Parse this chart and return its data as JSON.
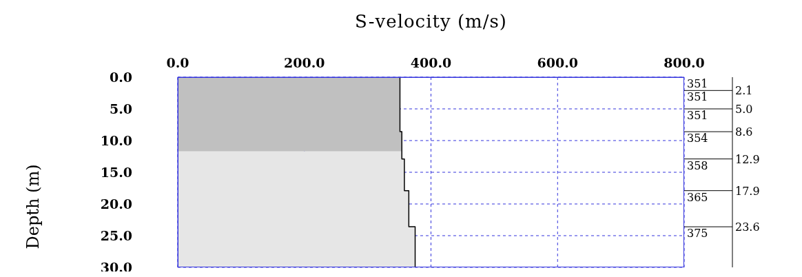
{
  "chart_data": {
    "type": "step",
    "orientation": "horizontal",
    "xlabel": "S-velocity (m/s)",
    "ylabel": "Depth (m)",
    "x": [
      0,
      2.1,
      5.0,
      8.6,
      12.9,
      17.9,
      23.6,
      30
    ],
    "values": [
      351,
      351,
      351,
      354,
      358,
      365,
      375,
      375
    ],
    "color": "#000000",
    "annotations": [
      "351",
      "351",
      "351",
      "354",
      "358",
      "365",
      "375"
    ],
    "xlim": [
      0,
      800
    ],
    "xticks": [
      {
        "value": 0,
        "label": "0.0"
      },
      {
        "value": 200,
        "label": "200.0"
      },
      {
        "value": 400,
        "label": "400.0"
      },
      {
        "value": 600,
        "label": "600.0"
      },
      {
        "value": 800,
        "label": "800.0"
      }
    ],
    "ylim": [
      30,
      0
    ],
    "yticks": [
      {
        "value": 0,
        "label": "0.0"
      },
      {
        "value": 5,
        "label": "5.0"
      },
      {
        "value": 10,
        "label": "10.0"
      },
      {
        "value": 15,
        "label": "15.0"
      },
      {
        "value": 20,
        "label": "20.0"
      },
      {
        "value": 25,
        "label": "25.0"
      },
      {
        "value": 30,
        "label": "30.0"
      }
    ],
    "y2lim": [
      30,
      0
    ],
    "y2ticks": [
      2.1,
      {
        "value": 5,
        "label": "5.0"
      },
      8.6,
      12.9,
      17.9,
      23.6
    ],
    "bands": [
      {
        "axis": "y",
        "from": 0,
        "to": 11.7,
        "color": "#c0c0c0"
      },
      {
        "axis": "y",
        "from": 11.7,
        "to": 30,
        "color": "#e6e6e6"
      }
    ],
    "grid": true
  }
}
